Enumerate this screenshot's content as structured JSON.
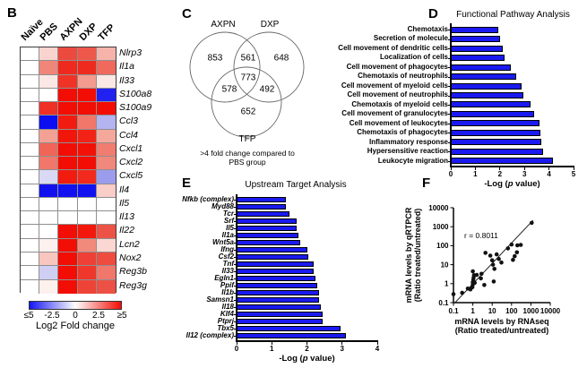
{
  "panels": {
    "B": {
      "letter": "B"
    },
    "C": {
      "letter": "C",
      "set_labels": [
        "AXPN",
        "DXP",
        "TFP"
      ],
      "regions": [
        {
          "name": "AXPN only",
          "value": "853"
        },
        {
          "name": "AXPN and DXP",
          "value": "561"
        },
        {
          "name": "DXP only",
          "value": "648"
        },
        {
          "name": "AXPN and TFP",
          "value": "578"
        },
        {
          "name": "AXPN and DXP and TFP",
          "value": "773"
        },
        {
          "name": "DXP and TFP",
          "value": "492"
        },
        {
          "name": "TFP only",
          "value": "652"
        }
      ],
      "caption": ">4 fold change compared to PBS group"
    },
    "D": {
      "letter": "D"
    },
    "E": {
      "letter": "E"
    },
    "F": {
      "letter": "F"
    }
  },
  "axis_label_parts": {
    "prefix": "-Log (",
    "italic": "p",
    "suffix": " value)"
  },
  "chart_data": [
    {
      "id": "B",
      "type": "heatmap",
      "title": "",
      "columns": [
        "Naïve",
        "PBS",
        "AXPN",
        "DXP",
        "TFP"
      ],
      "rows": [
        "Nlrp3",
        "Il1a",
        "Il33",
        "S100a8",
        "S100a9",
        "Ccl3",
        "Ccl4",
        "Cxcl1",
        "Cxcl2",
        "Cxcl5",
        "Il4",
        "Il5",
        "Il13",
        "Il22",
        "Lcn2",
        "Nox2",
        "Reg3b",
        "Reg3g"
      ],
      "colorbar": {
        "tick_labels": [
          "≤5",
          "-2.5",
          "0",
          "2.5",
          "≥5"
        ],
        "label": "Log2 Fold change",
        "min_color": "#1616F2",
        "mid_color": "#FFFFFF",
        "max_color": "#F20D05"
      },
      "cell_colors": [
        [
          "#FFFFFF",
          "#F9D4CF",
          "#EC4A3E",
          "#ED584B",
          "#F5B3AA"
        ],
        [
          "#FFFFFF",
          "#F0857A",
          "#EE2A1E",
          "#EE2A1E",
          "#EF6A5D"
        ],
        [
          "#FFFFFF",
          "#FBE7E4",
          "#EF3327",
          "#F49B8F",
          "#FBE7E4"
        ],
        [
          "#FFFFFF",
          "#FFFFFF",
          "#F20D05",
          "#F20D05",
          "#2121F2"
        ],
        [
          "#FFFFFF",
          "#EF3025",
          "#F20D05",
          "#F20D05",
          "#F20D05"
        ],
        [
          "#FFFFFF",
          "#0D0DF2",
          "#F21B10",
          "#F1776A",
          "#B4B4F0"
        ],
        [
          "#FFFFFF",
          "#F4A195",
          "#F2150A",
          "#F22316",
          "#F4A89C"
        ],
        [
          "#FFFFFF",
          "#F06557",
          "#F20D05",
          "#F21107",
          "#F07D6F"
        ],
        [
          "#FFFFFF",
          "#F1776A",
          "#F20D05",
          "#F20D05",
          "#F0887B"
        ],
        [
          "#FFFFFF",
          "#D9D9F6",
          "#F21B10",
          "#F22A1E",
          "#9C9CEC"
        ],
        [
          "#FFFFFF",
          "#1212F1",
          "#1212F1",
          "#1212F1",
          "#F9CDC8"
        ],
        [
          "#FFFFFF",
          "#FFFFFF",
          "#FFFFFF",
          "#FFFFFF",
          "#FFFFFF"
        ],
        [
          "#FFFFFF",
          "#FFFFFF",
          "#FFFFFF",
          "#FFFFFF",
          "#FFFFFF"
        ],
        [
          "#FFFFFF",
          "#FFFFFF",
          "#F20D05",
          "#F2180C",
          "#ED5246"
        ],
        [
          "#FFFFFF",
          "#FDF1EF",
          "#F20D05",
          "#F28A7C",
          "#FAD7D2"
        ],
        [
          "#FFFFFF",
          "#F9C6BF",
          "#F20D05",
          "#EE4034",
          "#ED4C3F"
        ],
        [
          "#FFFFFF",
          "#CFCFF4",
          "#F20D05",
          "#EF372B",
          "#F1776A"
        ],
        [
          "#FFFFFF",
          "#FDF0ED",
          "#F20D05",
          "#EE4337",
          "#ED5044"
        ]
      ]
    },
    {
      "id": "D",
      "type": "bar",
      "orientation": "horizontal",
      "title": "Functional Pathway Analysis",
      "categories": [
        "Chemotaxis",
        "Secretion of molecule",
        "Cell movement of dendritic cells",
        "Localization of cells",
        "Cell movement of phagocytes",
        "Chemotaxis of neutrophils",
        "Cell movement of myeloid cells",
        "Cell movement of neutrophils",
        "Chemotaxis of myeloid cells",
        "Cell movement of granulocytes",
        "Cell movement of leukocytes",
        "Chemotaxis of phagocytes",
        "Inflammatory response",
        "Hypersensitive reaction",
        "Leukocyte migration"
      ],
      "values": [
        1.95,
        2.0,
        2.1,
        2.2,
        2.45,
        2.65,
        2.9,
        2.95,
        3.25,
        3.4,
        3.6,
        3.65,
        3.7,
        3.75,
        4.15
      ],
      "xlabel": "-Log (p value)",
      "xlim": [
        0,
        5
      ],
      "xticks": [
        0,
        1,
        2,
        3,
        4,
        5
      ],
      "bar_color": "#1A1AF0"
    },
    {
      "id": "E",
      "type": "bar",
      "orientation": "horizontal",
      "title": "Upstream Target Analysis",
      "categories": [
        "Nfkb (complex)",
        "Myd88",
        "Tcr",
        "Srf",
        "Il5",
        "Il1a",
        "Wnt5a",
        "Ifng",
        "Csf2",
        "Tnf",
        "Il33",
        "Egln1",
        "Ppif",
        "Il1b",
        "Samsn1",
        "Il18",
        "Klf4",
        "Ptprj",
        "Tbx5",
        "Il12 (complex)"
      ],
      "values": [
        1.4,
        1.4,
        1.5,
        1.7,
        1.7,
        1.75,
        1.8,
        2.0,
        2.05,
        2.2,
        2.2,
        2.25,
        2.3,
        2.35,
        2.35,
        2.4,
        2.45,
        2.45,
        2.95,
        3.1
      ],
      "xlabel": "-Log (p value)",
      "xlim": [
        0,
        4
      ],
      "xticks": [
        0,
        1,
        2,
        3,
        4
      ],
      "bar_color": "#1A1AF0"
    },
    {
      "id": "F",
      "type": "scatter",
      "title": "",
      "annotation": "r = 0.8011",
      "xlabel_line1": "mRNA levels by RNAseq",
      "xlabel_line2": "(Ratio treated/untreated)",
      "ylabel_line1": "mRNA levels by qRTPCR",
      "ylabel_line2": "(Ratio treated/untreated)",
      "xscale": "log",
      "yscale": "log",
      "xlim": [
        0.1,
        10000
      ],
      "ylim": [
        0.1,
        10000
      ],
      "xticks": [
        0.1,
        1,
        10,
        100,
        1000,
        10000
      ],
      "yticks": [
        0.1,
        1,
        10,
        100,
        1000,
        10000
      ],
      "point_color": "#111111",
      "trend_line": {
        "x1": 0.12,
        "y1": 0.1,
        "x2": 1300,
        "y2": 2200
      },
      "points": [
        [
          0.1,
          0.28
        ],
        [
          0.28,
          0.33
        ],
        [
          0.55,
          0.55
        ],
        [
          0.75,
          0.5
        ],
        [
          0.95,
          0.65
        ],
        [
          1.0,
          0.9
        ],
        [
          1.0,
          1.2
        ],
        [
          1.05,
          1.6
        ],
        [
          1.1,
          2.1
        ],
        [
          1.15,
          2.8
        ],
        [
          1.0,
          4.5
        ],
        [
          1.25,
          1.1
        ],
        [
          1.6,
          2.9
        ],
        [
          2.6,
          1.9
        ],
        [
          2.8,
          3.3
        ],
        [
          3.9,
          0.85
        ],
        [
          4.5,
          42
        ],
        [
          8,
          30
        ],
        [
          10,
          17
        ],
        [
          11,
          10
        ],
        [
          12,
          1.3
        ],
        [
          13,
          6
        ],
        [
          17,
          35
        ],
        [
          22,
          20
        ],
        [
          30,
          13
        ],
        [
          65,
          72
        ],
        [
          100,
          115
        ],
        [
          118,
          18
        ],
        [
          145,
          28
        ],
        [
          190,
          45
        ],
        [
          200,
          105
        ],
        [
          300,
          110
        ],
        [
          1100,
          1600
        ]
      ]
    }
  ]
}
